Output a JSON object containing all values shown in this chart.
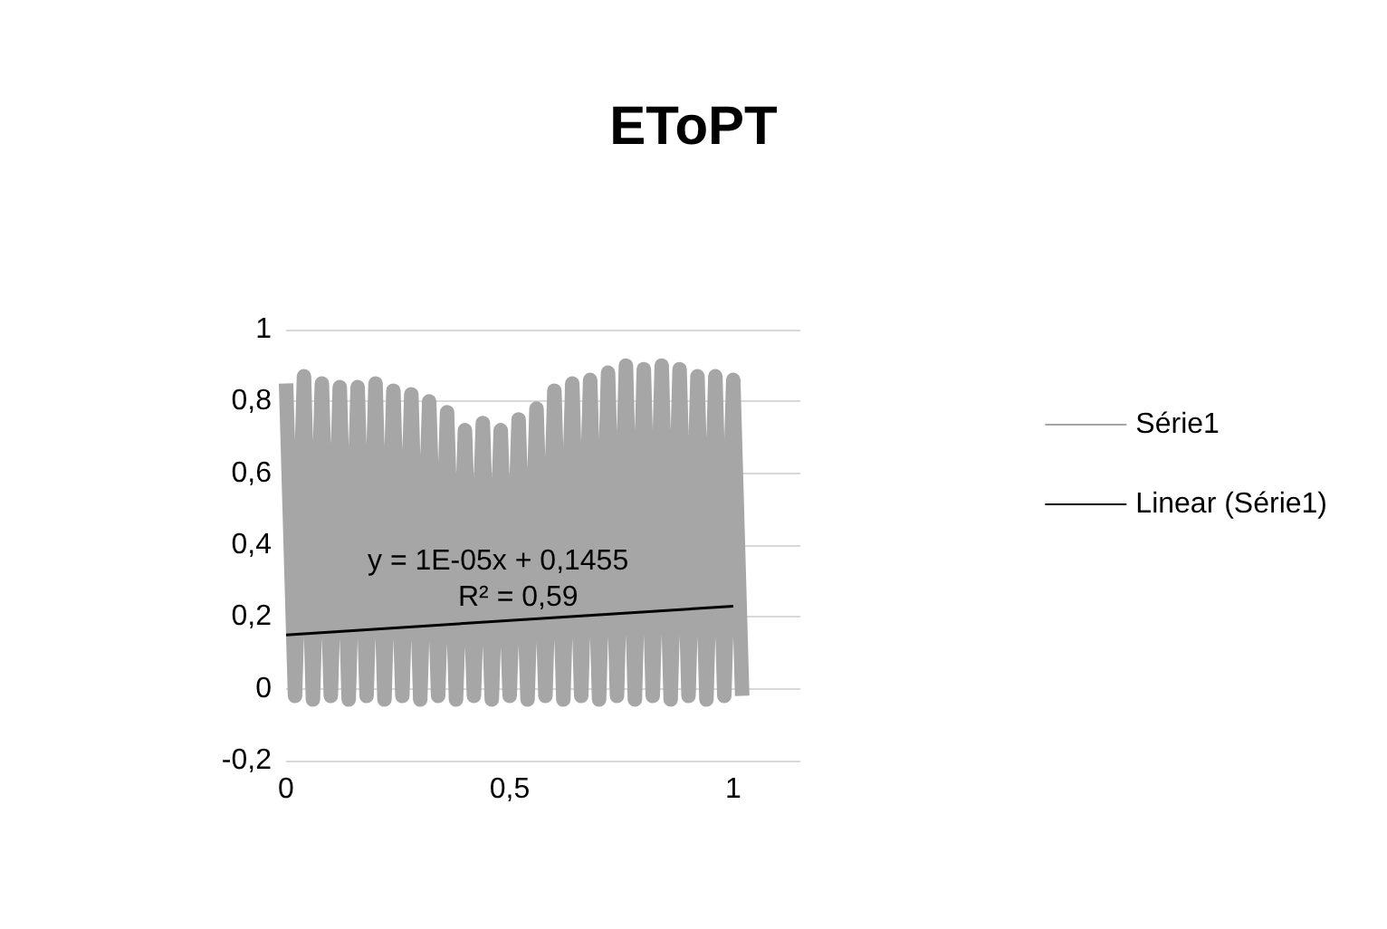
{
  "chart_data": {
    "type": "line",
    "title": "EToPT",
    "xlim": [
      0,
      1.15
    ],
    "xticks": [
      0,
      {
        "value": 0.5,
        "label": "0,5"
      },
      1
    ],
    "ylim": [
      -0.2,
      1
    ],
    "yticks": [
      {
        "value": -0.2,
        "label": "-0,2"
      },
      0,
      {
        "value": 0.2,
        "label": "0,2"
      },
      {
        "value": 0.4,
        "label": "0,4"
      },
      {
        "value": 0.6,
        "label": "0,6"
      },
      {
        "value": 0.8,
        "label": "0,8"
      },
      1
    ],
    "grid": "y",
    "legend": "right",
    "marker": "none",
    "series": [
      {
        "name": "Série1",
        "color": "#a6a6a6",
        "x": [
          0,
          0.02,
          0.04,
          0.06,
          0.08,
          0.1,
          0.12,
          0.14,
          0.16,
          0.18,
          0.2,
          0.22,
          0.24,
          0.26,
          0.28,
          0.3,
          0.32,
          0.34,
          0.36,
          0.38,
          0.4,
          0.42,
          0.44,
          0.46,
          0.48,
          0.5,
          0.52,
          0.54,
          0.56,
          0.58,
          0.6,
          0.62,
          0.64,
          0.66,
          0.68,
          0.7,
          0.72,
          0.74,
          0.76,
          0.78,
          0.8,
          0.82,
          0.84,
          0.86,
          0.88,
          0.9,
          0.92,
          0.94,
          0.96,
          0.98,
          1,
          1.02
        ],
        "values": [
          0.85,
          -0.02,
          0.87,
          -0.03,
          0.85,
          -0.02,
          0.84,
          -0.03,
          0.84,
          -0.02,
          0.85,
          -0.03,
          0.83,
          -0.02,
          0.82,
          -0.03,
          0.8,
          -0.02,
          0.77,
          -0.03,
          0.72,
          -0.02,
          0.74,
          -0.03,
          0.72,
          -0.02,
          0.75,
          -0.03,
          0.78,
          -0.02,
          0.83,
          -0.03,
          0.85,
          -0.02,
          0.86,
          -0.03,
          0.88,
          -0.02,
          0.9,
          -0.03,
          0.89,
          -0.02,
          0.9,
          -0.03,
          0.89,
          -0.02,
          0.87,
          -0.03,
          0.87,
          -0.02,
          0.86,
          -0.02
        ]
      },
      {
        "name": "Linear (Série1)",
        "color": "#000000",
        "x": [
          0,
          1
        ],
        "values": [
          0.15,
          0.23
        ]
      }
    ],
    "annotations": [
      "y = 1E-05x + 0,1455",
      "R² = 0,59"
    ]
  }
}
